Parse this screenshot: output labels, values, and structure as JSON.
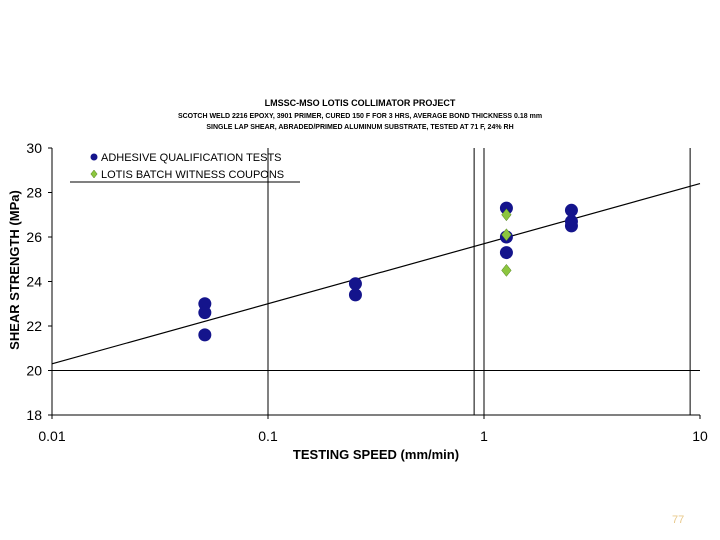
{
  "chart_data": {
    "type": "scatter",
    "title": "LMSSC-MSO LOTIS COLLIMATOR PROJECT",
    "subtitle_lines": [
      "SCOTCH WELD 2216 EPOXY, 3901 PRIMER, CURED 150 F FOR 3 HRS, AVERAGE BOND THICKNESS 0.18 mm",
      "SINGLE LAP SHEAR, ABRADED/PRIMED ALUMINUM SUBSTRATE, TESTED AT 71 F, 24% RH"
    ],
    "xlabel": "TESTING SPEED (mm/min)",
    "ylabel": "SHEAR STRENGTH (MPa)",
    "xscale": "log",
    "xlim": [
      0.01,
      10
    ],
    "ylim": [
      18,
      30
    ],
    "x_ticks": [
      0.01,
      0.1,
      1,
      10
    ],
    "x_tick_labels": [
      "0.01",
      "0.1",
      "1",
      "10"
    ],
    "y_ticks": [
      18,
      20,
      22,
      24,
      26,
      28,
      30
    ],
    "y_tick_labels": [
      "18",
      "20",
      "22",
      "24",
      "26",
      "28",
      "30"
    ],
    "grid": false,
    "legend_position": "top-left",
    "series": [
      {
        "name": "ADHESIVE QUALIFICATION TESTS",
        "marker": "circle",
        "color": "#14148c",
        "x": [
          0.051,
          0.051,
          0.051,
          0.254,
          0.254,
          1.27,
          1.27,
          1.27,
          2.54,
          2.54,
          2.54
        ],
        "y": [
          23.0,
          22.6,
          21.6,
          23.9,
          23.4,
          27.3,
          26.0,
          25.3,
          27.2,
          26.7,
          26.5
        ]
      },
      {
        "name": "LOTIS BATCH WITNESS COUPONS",
        "marker": "diamond",
        "color": "#8cc63f",
        "x": [
          1.27,
          1.27,
          1.27
        ],
        "y": [
          27.0,
          26.1,
          24.5
        ]
      }
    ],
    "trendline": {
      "x": [
        0.01,
        10
      ],
      "y": [
        20.3,
        28.4
      ],
      "color": "#000000"
    },
    "reference_lines": {
      "vertical_x": [
        0.1,
        0.9,
        1.0,
        9.0
      ],
      "horizontal_y": [
        20
      ]
    }
  },
  "slide": {
    "number": "77"
  }
}
